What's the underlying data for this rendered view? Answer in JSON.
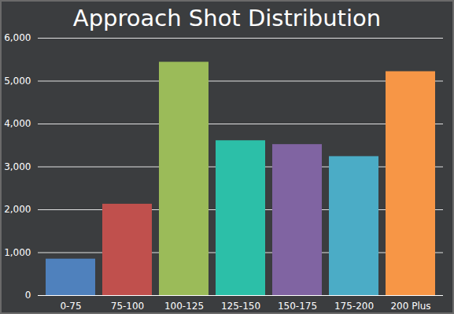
{
  "chart_data": {
    "type": "bar",
    "title": "Approach Shot Distribution",
    "categories": [
      "0-75",
      "75-100",
      "100-125",
      "125-150",
      "150-175",
      "175-200",
      "200 Plus"
    ],
    "values": [
      850,
      2130,
      5440,
      3610,
      3520,
      3240,
      5220
    ],
    "colors": [
      "#4f81bd",
      "#c0504d",
      "#9bbb59",
      "#2cbfa8",
      "#8064a2",
      "#4bacc6",
      "#f79646"
    ],
    "ylim": [
      0,
      6000
    ],
    "yticks": [
      0,
      {
        "value": 1000,
        "label": "1,000"
      },
      {
        "value": 2000,
        "label": "2,000"
      },
      {
        "value": 3000,
        "label": "3,000"
      },
      {
        "value": 4000,
        "label": "4,000"
      },
      {
        "value": 5000,
        "label": "5,000"
      },
      {
        "value": 6000,
        "label": "6,000"
      }
    ],
    "grid": true
  }
}
